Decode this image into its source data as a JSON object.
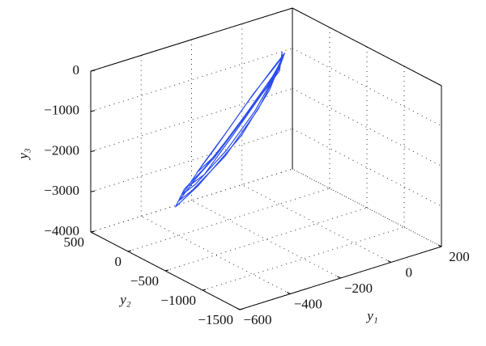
{
  "chart_data": {
    "type": "line3d",
    "xlabel": "y₁",
    "ylabel": "y₂",
    "zlabel": "y₃",
    "xlim": [
      -600,
      200
    ],
    "ylim": [
      -1500,
      500
    ],
    "zlim": [
      -4000,
      0
    ],
    "xticks": [
      {
        "value": -600,
        "label": "−600"
      },
      {
        "value": -400,
        "label": "−400"
      },
      {
        "value": -200,
        "label": "−200"
      },
      0,
      200
    ],
    "yticks": [
      500,
      0,
      {
        "value": -500,
        "label": "−500"
      },
      {
        "value": -1000,
        "label": "−1000"
      },
      {
        "value": -1500,
        "label": "−1500"
      }
    ],
    "zticks": [
      0,
      {
        "value": -1000,
        "label": "−1000"
      },
      {
        "value": -2000,
        "label": "−2000"
      },
      {
        "value": -3000,
        "label": "−3000"
      },
      {
        "value": -4000,
        "label": "−4000"
      }
    ],
    "grid": true,
    "series": [
      {
        "color": "#2b4cf0",
        "x": [
          100,
          60,
          -100,
          -300,
          -450,
          -500,
          -380,
          -150,
          20,
          90,
          40,
          -120,
          -320,
          -420,
          -350,
          -180,
          0,
          80,
          30,
          -200,
          -400,
          -480,
          -420,
          -250,
          -60,
          70,
          110,
          50,
          -100,
          -280,
          -380,
          -300,
          -130,
          30,
          100,
          60,
          -60,
          -220,
          -350,
          -460,
          -400,
          -240,
          -80,
          40,
          90,
          100
        ],
        "y": [
          300,
          200,
          50,
          -150,
          -250,
          -300,
          -200,
          0,
          200,
          280,
          220,
          50,
          -150,
          -220,
          -180,
          0,
          180,
          260,
          210,
          -50,
          -220,
          -280,
          -250,
          -120,
          80,
          240,
          300,
          250,
          100,
          -80,
          -180,
          -120,
          50,
          200,
          290,
          260,
          150,
          -20,
          -150,
          -260,
          -230,
          -100,
          60,
          200,
          270,
          300
        ],
        "z": [
          -700,
          -1000,
          -1500,
          -2100,
          -2500,
          -2800,
          -2600,
          -2000,
          -1400,
          -900,
          -1100,
          -1600,
          -2200,
          -2500,
          -2400,
          -1900,
          -1300,
          -900,
          -1200,
          -1800,
          -2400,
          -2700,
          -2600,
          -2200,
          -1600,
          -1000,
          -750,
          -950,
          -1400,
          -2000,
          -2300,
          -2150,
          -1700,
          -1150,
          -800,
          -950,
          -1300,
          -1800,
          -2200,
          -2600,
          -2500,
          -2100,
          -1600,
          -1100,
          -850,
          -700
        ]
      }
    ]
  }
}
